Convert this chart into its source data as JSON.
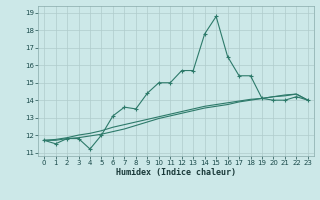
{
  "xlabel": "Humidex (Indice chaleur)",
  "background_color": "#cce8e8",
  "line_color": "#2d7a6a",
  "grid_color": "#b0cccc",
  "xlim": [
    -0.5,
    23.5
  ],
  "ylim": [
    10.8,
    19.4
  ],
  "xticks": [
    0,
    1,
    2,
    3,
    4,
    5,
    6,
    7,
    8,
    9,
    10,
    11,
    12,
    13,
    14,
    15,
    16,
    17,
    18,
    19,
    20,
    21,
    22,
    23
  ],
  "yticks": [
    11,
    12,
    13,
    14,
    15,
    16,
    17,
    18,
    19
  ],
  "line1_x": [
    0,
    1,
    2,
    3,
    4,
    5,
    6,
    7,
    8,
    9,
    10,
    11,
    12,
    13,
    14,
    15,
    16,
    17,
    18,
    19,
    20,
    21,
    22,
    23
  ],
  "line1_y": [
    11.7,
    11.5,
    11.8,
    11.8,
    11.2,
    12.0,
    13.1,
    13.6,
    13.5,
    14.4,
    15.0,
    15.0,
    15.7,
    15.7,
    17.8,
    18.8,
    16.5,
    15.4,
    15.4,
    14.1,
    14.0,
    14.0,
    14.2,
    14.0
  ],
  "line2_x": [
    0,
    1,
    2,
    3,
    4,
    5,
    6,
    7,
    8,
    9,
    10,
    11,
    12,
    13,
    14,
    15,
    16,
    17,
    18,
    19,
    20,
    21,
    22,
    23
  ],
  "line2_y": [
    11.7,
    11.75,
    11.85,
    12.0,
    12.1,
    12.25,
    12.45,
    12.6,
    12.75,
    12.9,
    13.05,
    13.2,
    13.35,
    13.5,
    13.65,
    13.75,
    13.85,
    13.95,
    14.05,
    14.1,
    14.2,
    14.3,
    14.35,
    14.0
  ],
  "line3_x": [
    0,
    1,
    2,
    3,
    4,
    5,
    6,
    7,
    8,
    9,
    10,
    11,
    12,
    13,
    14,
    15,
    16,
    17,
    18,
    19,
    20,
    21,
    22,
    23
  ],
  "line3_y": [
    11.7,
    11.7,
    11.8,
    11.85,
    11.95,
    12.05,
    12.2,
    12.35,
    12.55,
    12.75,
    12.95,
    13.1,
    13.25,
    13.4,
    13.55,
    13.65,
    13.75,
    13.9,
    14.0,
    14.1,
    14.2,
    14.25,
    14.35,
    14.0
  ]
}
